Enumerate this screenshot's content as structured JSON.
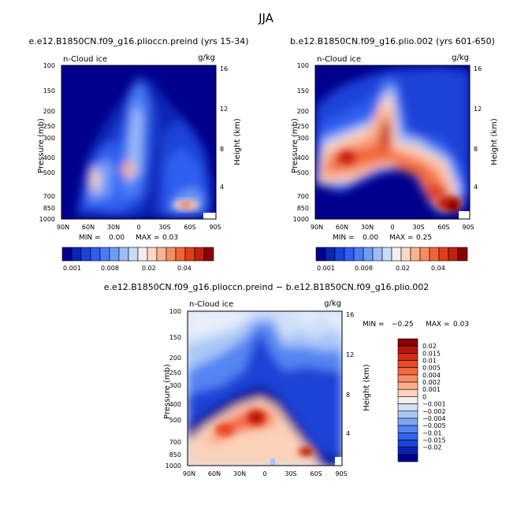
{
  "figure_title": "JJA",
  "chart_data": [
    {
      "type": "heatmap",
      "title": "e.e12.B1850CN.f09_g16.plioccn.preind (yrs 15-34)",
      "field_label": "n-Cloud ice",
      "units": "g/kg",
      "ylabel": "Pressure (mb)",
      "y2label": "Height (km)",
      "x_ticks": [
        "90N",
        "60N",
        "30N",
        "0",
        "30S",
        "60S",
        "90S"
      ],
      "y_ticks": [
        "100",
        "150",
        "200",
        "250",
        "300",
        "400",
        "500",
        "700",
        "850",
        "1000"
      ],
      "y2_ticks": [
        "16",
        "12",
        "8",
        "4"
      ],
      "stats": {
        "min_label": "MIN =",
        "min": "0.00",
        "max_label": "MAX =",
        "max": "0.03"
      },
      "colorbar": {
        "labels": [
          "0.001",
          "0.008",
          "0.02",
          "0.04"
        ],
        "colors": [
          "#00008c",
          "#0a26b4",
          "#1a43d8",
          "#2d5ef0",
          "#4a7cf7",
          "#6f9bf8",
          "#9dbcf8",
          "#c8dbf7",
          "#f2eef0",
          "#fcd7c3",
          "#fbb28f",
          "#f78c62",
          "#f26338",
          "#e13d1d",
          "#c2200e",
          "#8b0000"
        ]
      }
    },
    {
      "type": "heatmap",
      "title": "b.e12.B1850CN.f09_g16.plio.002 (yrs 601-650)",
      "field_label": "n-Cloud ice",
      "units": "g/kg",
      "ylabel": "Pressure (mb)",
      "y2label": "Height (km)",
      "x_ticks": [
        "90N",
        "60N",
        "30N",
        "0",
        "30S",
        "60S",
        "90S"
      ],
      "y_ticks": [
        "100",
        "150",
        "200",
        "250",
        "300",
        "400",
        "500",
        "700",
        "850",
        "1000"
      ],
      "y2_ticks": [
        "16",
        "12",
        "8",
        "4"
      ],
      "stats": {
        "min_label": "MIN =",
        "min": "0.00",
        "max_label": "MAX =",
        "max": "0.25"
      },
      "colorbar": {
        "labels": [
          "0.001",
          "0.008",
          "0.02",
          "0.04"
        ],
        "colors": [
          "#00008c",
          "#0a26b4",
          "#1a43d8",
          "#2d5ef0",
          "#4a7cf7",
          "#6f9bf8",
          "#9dbcf8",
          "#c8dbf7",
          "#f2eef0",
          "#fcd7c3",
          "#fbb28f",
          "#f78c62",
          "#f26338",
          "#e13d1d",
          "#c2200e",
          "#8b0000"
        ]
      }
    },
    {
      "type": "heatmap",
      "title": "e.e12.B1850CN.f09_g16.plioccn.preind − b.e12.B1850CN.f09_g16.plio.002",
      "field_label": "n-Cloud ice",
      "units": "g/kg",
      "ylabel": "Pressure (mb)",
      "y2label": "Height (km)",
      "x_ticks": [
        "90N",
        "60N",
        "30N",
        "0",
        "30S",
        "60S",
        "90S"
      ],
      "y_ticks": [
        "100",
        "150",
        "200",
        "250",
        "300",
        "400",
        "500",
        "700",
        "850",
        "1000"
      ],
      "y2_ticks": [
        "16",
        "12",
        "8",
        "4"
      ],
      "stats": {
        "min_label": "MIN =",
        "min": "−0.25",
        "max_label": "MAX =",
        "max": "0.03"
      },
      "colorbar": {
        "labels": [
          "0.02",
          "0.015",
          "0.01",
          "0.005",
          "0.004",
          "0.002",
          "0.001",
          "0",
          "−0.001",
          "−0.002",
          "−0.004",
          "−0.005",
          "−0.01",
          "−0.015",
          "−0.02"
        ],
        "colors": [
          "#8b0000",
          "#b3170b",
          "#d42d14",
          "#ea4a25",
          "#f3693f",
          "#f88b63",
          "#fbae8d",
          "#fcd2ba",
          "#f4efee",
          "#cfe0f8",
          "#a9c6f7",
          "#7ea6f5",
          "#5585f2",
          "#3364eb",
          "#1c43d6",
          "#0b22b0",
          "#00008c"
        ]
      }
    }
  ]
}
